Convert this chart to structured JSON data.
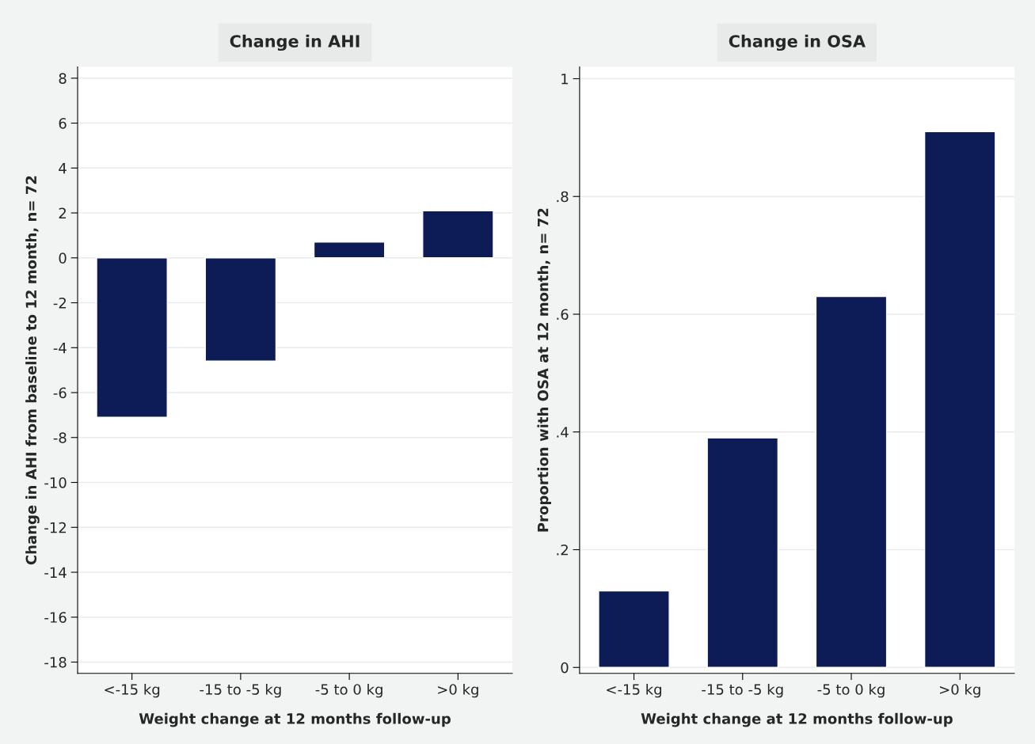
{
  "chart_data": [
    {
      "type": "bar",
      "title": "Change in AHI",
      "xlabel": "Weight change at 12 months follow-up",
      "ylabel": "Change in AHI from baseline to 12 month, n= 72",
      "categories": [
        "<-15 kg",
        "-15 to -5 kg",
        "-5 to 0 kg",
        ">0 kg"
      ],
      "series": [
        {
          "color": "#0d1b56",
          "values": [
            -7.1,
            -4.6,
            0.7,
            2.1
          ]
        }
      ],
      "ylim": [
        -18.5,
        8.5
      ],
      "yticks": [
        -18,
        -16,
        -14,
        -12,
        -10,
        -8,
        -6,
        -4,
        -2,
        0,
        2,
        4,
        6,
        8
      ],
      "grid": "y"
    },
    {
      "type": "bar",
      "title": "Change in OSA",
      "xlabel": "Weight change at 12 months follow-up",
      "ylabel": "Proportion with OSA at 12 month, n= 72",
      "categories": [
        "<-15 kg",
        "-15 to -5 kg",
        "-5 to 0 kg",
        ">0 kg"
      ],
      "series": [
        {
          "color": "#0d1b56",
          "values": [
            0.13,
            0.39,
            0.63,
            0.91
          ]
        }
      ],
      "ylim": [
        -0.01,
        1.02
      ],
      "yticks": [
        0,
        {
          "value": 0.2,
          "label": ".2"
        },
        {
          "value": 0.4,
          "label": ".4"
        },
        {
          "value": 0.6,
          "label": ".6"
        },
        {
          "value": 0.8,
          "label": ".8"
        },
        1
      ],
      "grid": "y"
    }
  ]
}
